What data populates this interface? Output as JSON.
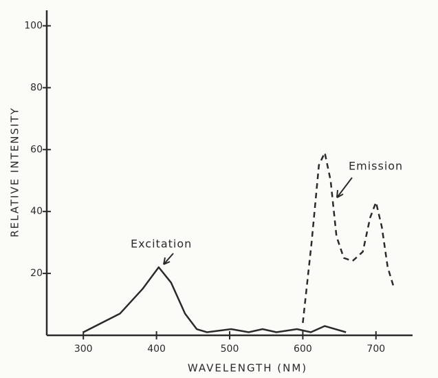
{
  "chart_data": {
    "type": "line",
    "x_label": "WAVELENGTH (NM)",
    "y_label": "RELATIVE INTENSITY",
    "xlim": [
      250,
      750
    ],
    "xticks": [
      300,
      400,
      500,
      600,
      700
    ],
    "ylim": [
      0,
      105
    ],
    "yticks": [
      20,
      40,
      60,
      80,
      100
    ],
    "series": [
      {
        "name": "Excitation",
        "color": "#2a2a2a",
        "style": "solid",
        "x": [
          300,
          350,
          381,
          403,
          420,
          439,
          455,
          469,
          502,
          526,
          545,
          564,
          592,
          611,
          630,
          659
        ],
        "values": [
          1,
          7,
          15,
          22,
          17,
          7,
          2,
          1,
          2,
          1,
          2,
          1,
          2,
          1,
          3,
          1
        ]
      },
      {
        "name": "Emission",
        "color": "#2a2a2a",
        "style": "dashed",
        "x": [
          600,
          612,
          622,
          630,
          638,
          646,
          656,
          668,
          682,
          692,
          700,
          708,
          716,
          725
        ],
        "values": [
          4,
          30,
          55,
          59,
          50,
          32,
          25,
          24,
          27,
          38,
          43,
          35,
          22,
          15
        ]
      }
    ]
  }
}
